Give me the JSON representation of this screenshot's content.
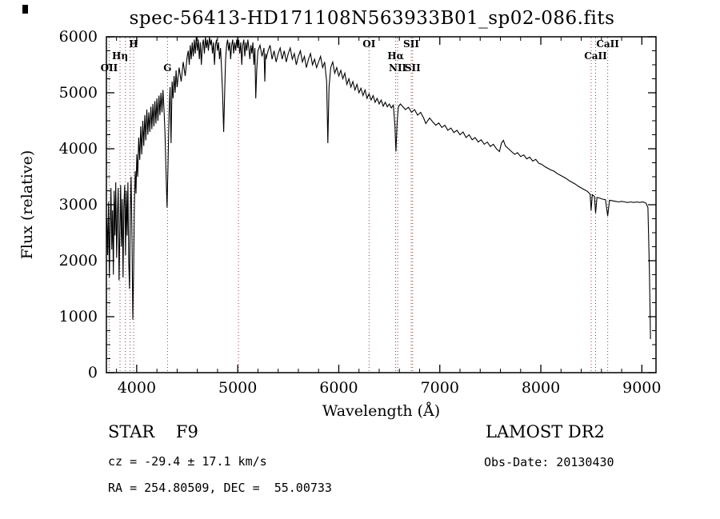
{
  "title": "spec-56413-HD171108N563933B01_sp02-086.fits",
  "footer": {
    "class_label": "STAR    F9",
    "survey": "LAMOST DR2",
    "cz": "cz = -29.4 ± 17.1 km/s",
    "obs_date": "Obs-Date: 20130430",
    "radec": "RA = 254.80509, DEC =  55.00733"
  },
  "chart_data": {
    "type": "line",
    "title": "spec-56413-HD171108N563933B01_sp02-086.fits",
    "xlabel": "Wavelength (Å)",
    "ylabel": "Flux (relative)",
    "xlim": [
      3700,
      9140
    ],
    "ylim": [
      0,
      6000
    ],
    "xticks": [
      4000,
      5000,
      6000,
      7000,
      8000,
      9000
    ],
    "yticks": [
      0,
      1000,
      2000,
      3000,
      4000,
      5000,
      6000
    ],
    "grid": false,
    "line_color": "#000000",
    "marker_color": "#8f4040",
    "markers": [
      {
        "wavelength": 3727,
        "label": "OII",
        "row": 2
      },
      {
        "wavelength": 3835,
        "label": "Hη",
        "row": 1
      },
      {
        "wavelength": 3889,
        "label": "",
        "row": 0
      },
      {
        "wavelength": 3934,
        "label": "",
        "row": 0
      },
      {
        "wavelength": 3969,
        "label": "H",
        "row": 0
      },
      {
        "wavelength": 4305,
        "label": "G",
        "row": 2
      },
      {
        "wavelength": 5007,
        "label": "",
        "row": 0
      },
      {
        "wavelength": 6300,
        "label": "OI",
        "row": 0
      },
      {
        "wavelength": 6563,
        "label": "Hα",
        "row": 1
      },
      {
        "wavelength": 6583,
        "label": "NII",
        "row": 2
      },
      {
        "wavelength": 6717,
        "label": "SII",
        "row": 0
      },
      {
        "wavelength": 6731,
        "label": "SII",
        "row": 2
      },
      {
        "wavelength": 8498,
        "label": "",
        "row": 1
      },
      {
        "wavelength": 8542,
        "label": "CaII",
        "row": 1
      },
      {
        "wavelength": 8662,
        "label": "CaII",
        "row": 0
      }
    ],
    "points": [
      [
        3705,
        2750
      ],
      [
        3713,
        2100
      ],
      [
        3721,
        3050
      ],
      [
        3729,
        1700
      ],
      [
        3737,
        2600
      ],
      [
        3745,
        3300
      ],
      [
        3753,
        2200
      ],
      [
        3761,
        2900
      ],
      [
        3769,
        1750
      ],
      [
        3777,
        3250
      ],
      [
        3785,
        2450
      ],
      [
        3793,
        3400
      ],
      [
        3801,
        2050
      ],
      [
        3809,
        2850
      ],
      [
        3817,
        3300
      ],
      [
        3825,
        1650
      ],
      [
        3833,
        2500
      ],
      [
        3841,
        3350
      ],
      [
        3849,
        2250
      ],
      [
        3857,
        3100
      ],
      [
        3865,
        1700
      ],
      [
        3873,
        2950
      ],
      [
        3881,
        3350
      ],
      [
        3889,
        2100
      ],
      [
        3897,
        3250
      ],
      [
        3905,
        2450
      ],
      [
        3913,
        3400
      ],
      [
        3921,
        2000
      ],
      [
        3929,
        1500
      ],
      [
        3937,
        2900
      ],
      [
        3945,
        3500
      ],
      [
        3953,
        2400
      ],
      [
        3961,
        950
      ],
      [
        3969,
        1800
      ],
      [
        3977,
        3000
      ],
      [
        3985,
        3600
      ],
      [
        3993,
        3200
      ],
      [
        4001,
        3900
      ],
      [
        4010,
        3500
      ],
      [
        4020,
        4200
      ],
      [
        4030,
        3800
      ],
      [
        4040,
        4400
      ],
      [
        4050,
        3900
      ],
      [
        4060,
        4500
      ],
      [
        4070,
        4050
      ],
      [
        4080,
        4600
      ],
      [
        4090,
        4150
      ],
      [
        4100,
        4700
      ],
      [
        4110,
        4250
      ],
      [
        4120,
        4650
      ],
      [
        4130,
        4300
      ],
      [
        4140,
        4750
      ],
      [
        4150,
        4350
      ],
      [
        4160,
        4800
      ],
      [
        4170,
        4400
      ],
      [
        4180,
        4850
      ],
      [
        4190,
        4450
      ],
      [
        4200,
        4900
      ],
      [
        4210,
        4500
      ],
      [
        4220,
        4950
      ],
      [
        4230,
        4600
      ],
      [
        4240,
        5000
      ],
      [
        4250,
        4650
      ],
      [
        4260,
        5050
      ],
      [
        4270,
        4700
      ],
      [
        4280,
        4300
      ],
      [
        4290,
        3600
      ],
      [
        4300,
        2950
      ],
      [
        4310,
        3700
      ],
      [
        4320,
        4600
      ],
      [
        4330,
        5100
      ],
      [
        4340,
        4100
      ],
      [
        4350,
        5200
      ],
      [
        4360,
        4900
      ],
      [
        4370,
        5300
      ],
      [
        4380,
        5000
      ],
      [
        4390,
        5400
      ],
      [
        4400,
        5100
      ],
      [
        4420,
        5450
      ],
      [
        4440,
        5200
      ],
      [
        4460,
        5550
      ],
      [
        4480,
        5300
      ],
      [
        4500,
        5650
      ],
      [
        4510,
        5750
      ],
      [
        4520,
        5500
      ],
      [
        4530,
        5850
      ],
      [
        4540,
        5600
      ],
      [
        4550,
        5900
      ],
      [
        4560,
        5650
      ],
      [
        4570,
        5950
      ],
      [
        4580,
        5700
      ],
      [
        4590,
        6000
      ],
      [
        4600,
        5750
      ],
      [
        4610,
        5950
      ],
      [
        4620,
        5600
      ],
      [
        4630,
        5900
      ],
      [
        4640,
        5500
      ],
      [
        4650,
        5850
      ],
      [
        4660,
        5950
      ],
      [
        4670,
        5700
      ],
      [
        4680,
        6000
      ],
      [
        4690,
        5800
      ],
      [
        4700,
        5950
      ],
      [
        4710,
        5750
      ],
      [
        4720,
        6000
      ],
      [
        4730,
        5850
      ],
      [
        4740,
        5950
      ],
      [
        4750,
        5700
      ],
      [
        4760,
        5900
      ],
      [
        4770,
        5500
      ],
      [
        4780,
        5850
      ],
      [
        4790,
        5950
      ],
      [
        4800,
        5750
      ],
      [
        4810,
        5900
      ],
      [
        4820,
        5600
      ],
      [
        4830,
        5800
      ],
      [
        4840,
        5400
      ],
      [
        4850,
        5000
      ],
      [
        4861,
        4300
      ],
      [
        4872,
        5100
      ],
      [
        4880,
        5600
      ],
      [
        4890,
        5850
      ],
      [
        4900,
        5950
      ],
      [
        4910,
        5750
      ],
      [
        4920,
        5900
      ],
      [
        4930,
        5600
      ],
      [
        4940,
        5850
      ],
      [
        4950,
        5950
      ],
      [
        4960,
        5700
      ],
      [
        4970,
        5900
      ],
      [
        4980,
        5750
      ],
      [
        4990,
        5950
      ],
      [
        5000,
        5800
      ],
      [
        5010,
        5950
      ],
      [
        5020,
        5700
      ],
      [
        5030,
        5900
      ],
      [
        5040,
        5500
      ],
      [
        5050,
        5850
      ],
      [
        5060,
        5950
      ],
      [
        5070,
        5650
      ],
      [
        5080,
        5900
      ],
      [
        5090,
        5750
      ],
      [
        5100,
        5950
      ],
      [
        5110,
        5800
      ],
      [
        5120,
        5600
      ],
      [
        5130,
        5850
      ],
      [
        5140,
        5700
      ],
      [
        5150,
        5900
      ],
      [
        5160,
        5500
      ],
      [
        5170,
        5800
      ],
      [
        5178,
        4900
      ],
      [
        5188,
        5400
      ],
      [
        5200,
        5750
      ],
      [
        5220,
        5850
      ],
      [
        5240,
        5650
      ],
      [
        5260,
        5800
      ],
      [
        5268,
        5200
      ],
      [
        5276,
        5700
      ],
      [
        5280,
        5600
      ],
      [
        5300,
        5750
      ],
      [
        5320,
        5850
      ],
      [
        5340,
        5600
      ],
      [
        5360,
        5750
      ],
      [
        5380,
        5550
      ],
      [
        5400,
        5700
      ],
      [
        5420,
        5800
      ],
      [
        5440,
        5600
      ],
      [
        5460,
        5750
      ],
      [
        5480,
        5550
      ],
      [
        5500,
        5700
      ],
      [
        5520,
        5800
      ],
      [
        5540,
        5600
      ],
      [
        5560,
        5700
      ],
      [
        5580,
        5500
      ],
      [
        5600,
        5650
      ],
      [
        5620,
        5750
      ],
      [
        5640,
        5550
      ],
      [
        5660,
        5650
      ],
      [
        5680,
        5450
      ],
      [
        5700,
        5600
      ],
      [
        5720,
        5700
      ],
      [
        5740,
        5500
      ],
      [
        5760,
        5600
      ],
      [
        5780,
        5450
      ],
      [
        5800,
        5550
      ],
      [
        5820,
        5650
      ],
      [
        5840,
        5450
      ],
      [
        5860,
        5550
      ],
      [
        5880,
        5200
      ],
      [
        5892,
        4100
      ],
      [
        5904,
        5100
      ],
      [
        5920,
        5450
      ],
      [
        5940,
        5550
      ],
      [
        5960,
        5350
      ],
      [
        5980,
        5450
      ],
      [
        6000,
        5300
      ],
      [
        6020,
        5400
      ],
      [
        6040,
        5250
      ],
      [
        6060,
        5350
      ],
      [
        6080,
        5150
      ],
      [
        6100,
        5250
      ],
      [
        6120,
        5100
      ],
      [
        6140,
        5200
      ],
      [
        6160,
        5050
      ],
      [
        6180,
        5150
      ],
      [
        6200,
        5000
      ],
      [
        6220,
        5080
      ],
      [
        6240,
        4950
      ],
      [
        6260,
        5050
      ],
      [
        6280,
        4900
      ],
      [
        6300,
        4980
      ],
      [
        6320,
        4870
      ],
      [
        6340,
        4950
      ],
      [
        6360,
        4830
      ],
      [
        6380,
        4900
      ],
      [
        6400,
        4800
      ],
      [
        6420,
        4870
      ],
      [
        6440,
        4760
      ],
      [
        6460,
        4830
      ],
      [
        6480,
        4750
      ],
      [
        6500,
        4800
      ],
      [
        6520,
        4730
      ],
      [
        6540,
        4780
      ],
      [
        6556,
        4400
      ],
      [
        6566,
        3950
      ],
      [
        6578,
        4500
      ],
      [
        6590,
        4750
      ],
      [
        6610,
        4800
      ],
      [
        6630,
        4760
      ],
      [
        6660,
        4700
      ],
      [
        6690,
        4740
      ],
      [
        6720,
        4650
      ],
      [
        6750,
        4700
      ],
      [
        6780,
        4600
      ],
      [
        6810,
        4650
      ],
      [
        6840,
        4550
      ],
      [
        6862,
        4450
      ],
      [
        6880,
        4500
      ],
      [
        6900,
        4550
      ],
      [
        6930,
        4480
      ],
      [
        6960,
        4420
      ],
      [
        6990,
        4460
      ],
      [
        7020,
        4380
      ],
      [
        7050,
        4420
      ],
      [
        7080,
        4330
      ],
      [
        7110,
        4370
      ],
      [
        7140,
        4290
      ],
      [
        7170,
        4330
      ],
      [
        7200,
        4250
      ],
      [
        7230,
        4300
      ],
      [
        7260,
        4200
      ],
      [
        7290,
        4250
      ],
      [
        7320,
        4160
      ],
      [
        7350,
        4200
      ],
      [
        7380,
        4120
      ],
      [
        7410,
        4160
      ],
      [
        7440,
        4080
      ],
      [
        7470,
        4120
      ],
      [
        7500,
        4040
      ],
      [
        7530,
        4080
      ],
      [
        7560,
        4000
      ],
      [
        7590,
        3950
      ],
      [
        7610,
        4100
      ],
      [
        7630,
        4150
      ],
      [
        7650,
        4050
      ],
      [
        7680,
        4000
      ],
      [
        7710,
        3950
      ],
      [
        7740,
        3900
      ],
      [
        7770,
        3930
      ],
      [
        7800,
        3860
      ],
      [
        7830,
        3890
      ],
      [
        7860,
        3820
      ],
      [
        7890,
        3850
      ],
      [
        7920,
        3780
      ],
      [
        7950,
        3810
      ],
      [
        7980,
        3740
      ],
      [
        8010,
        3720
      ],
      [
        8040,
        3680
      ],
      [
        8070,
        3650
      ],
      [
        8100,
        3620
      ],
      [
        8130,
        3600
      ],
      [
        8160,
        3560
      ],
      [
        8190,
        3530
      ],
      [
        8220,
        3500
      ],
      [
        8250,
        3470
      ],
      [
        8280,
        3430
      ],
      [
        8310,
        3400
      ],
      [
        8340,
        3370
      ],
      [
        8370,
        3330
      ],
      [
        8400,
        3300
      ],
      [
        8430,
        3270
      ],
      [
        8460,
        3240
      ],
      [
        8488,
        3190
      ],
      [
        8498,
        2900
      ],
      [
        8510,
        3180
      ],
      [
        8530,
        3150
      ],
      [
        8542,
        2850
      ],
      [
        8556,
        3130
      ],
      [
        8580,
        3120
      ],
      [
        8610,
        3100
      ],
      [
        8640,
        3090
      ],
      [
        8662,
        2800
      ],
      [
        8680,
        3080
      ],
      [
        8710,
        3070
      ],
      [
        8740,
        3060
      ],
      [
        8770,
        3050
      ],
      [
        8800,
        3060
      ],
      [
        8830,
        3050
      ],
      [
        8860,
        3040
      ],
      [
        8890,
        3050
      ],
      [
        8920,
        3040
      ],
      [
        8950,
        3050
      ],
      [
        8980,
        3040
      ],
      [
        9010,
        3050
      ],
      [
        9040,
        3030
      ],
      [
        9060,
        2950
      ],
      [
        9075,
        1800
      ],
      [
        9085,
        600
      ]
    ]
  }
}
